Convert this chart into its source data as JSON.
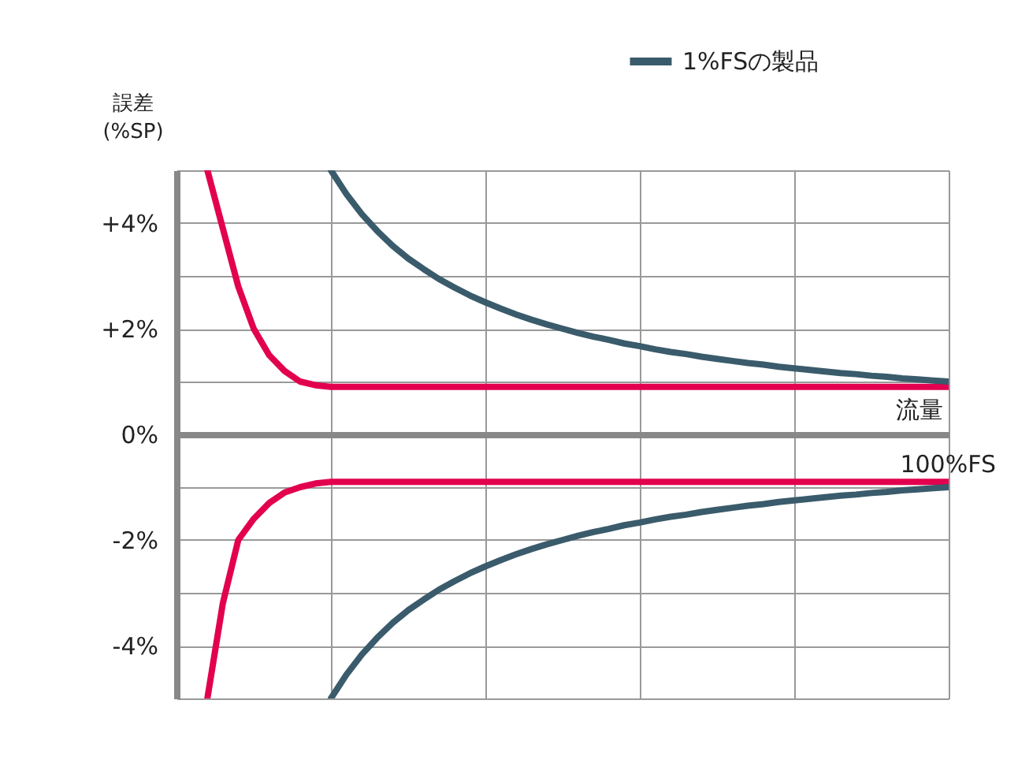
{
  "chart_data": {
    "type": "line",
    "xlabel": "流量",
    "ylabel": "誤差\n(%SP)",
    "annotations": [
      "100%FS"
    ],
    "categories": [
      null,
      null,
      null,
      null,
      null,
      null,
      null,
      null,
      null,
      null,
      null,
      null,
      null,
      null,
      null,
      null,
      null,
      null,
      null,
      null,
      null,
      null,
      null,
      null,
      null,
      null,
      null,
      null,
      null,
      null,
      null,
      null,
      null,
      null,
      null,
      null,
      null,
      null,
      null,
      null,
      null,
      null,
      null,
      null,
      null,
      null,
      null,
      null,
      null,
      null,
      null
    ],
    "ylim": [
      -5,
      5
    ],
    "yticks": [
      {
        "value": -5,
        "label": null
      },
      {
        "value": -4,
        "label": "-4%"
      },
      {
        "value": -3,
        "label": null
      },
      {
        "value": -2,
        "label": "-2%"
      },
      {
        "value": -1,
        "label": null
      },
      {
        "value": 0,
        "label": "0%"
      },
      {
        "value": 1,
        "label": null
      },
      {
        "value": 2,
        "label": "+2%"
      },
      {
        "value": 3,
        "label": null
      },
      {
        "value": 4,
        "label": "+4%"
      },
      {
        "value": 5,
        "label": null
      }
    ],
    "grid": true,
    "legend": "top right",
    "marker": "none",
    "line_style": "solid",
    "series": [
      {
        "color": "#e2004f",
        "values": [
          null,
          null,
          5,
          3.9,
          2.8,
          2,
          1.5,
          1.2,
          1,
          0.93,
          0.9,
          0.9,
          0.9,
          0.9,
          0.9,
          0.9,
          0.9,
          0.9,
          0.9,
          0.9,
          0.9,
          0.9,
          0.9,
          0.9,
          0.9,
          0.9,
          0.9,
          0.9,
          0.9,
          0.9,
          0.9,
          0.9,
          0.9,
          0.9,
          0.9,
          0.9,
          0.9,
          0.9,
          0.9,
          0.9,
          0.9,
          0.9,
          0.9,
          0.9,
          0.9,
          0.9,
          0.9,
          0.9,
          0.9,
          0.9,
          0.9
        ]
      },
      {
        "color": "#e2004f",
        "values": [
          null,
          null,
          -5,
          -3.2,
          -2,
          -1.6,
          -1.3,
          -1.1,
          -1,
          -0.93,
          -0.9,
          -0.9,
          -0.9,
          -0.9,
          -0.9,
          -0.9,
          -0.9,
          -0.9,
          -0.9,
          -0.9,
          -0.9,
          -0.9,
          -0.9,
          -0.9,
          -0.9,
          -0.9,
          -0.9,
          -0.9,
          -0.9,
          -0.9,
          -0.9,
          -0.9,
          -0.9,
          -0.9,
          -0.9,
          -0.9,
          -0.9,
          -0.9,
          -0.9,
          -0.9,
          -0.9,
          -0.9,
          -0.9,
          -0.9,
          -0.9,
          -0.9,
          -0.9,
          -0.9,
          -0.9,
          -0.9,
          -0.9
        ]
      },
      {
        "name": "1%FSの製品",
        "color": "#3a5b6b",
        "values": [
          null,
          null,
          null,
          null,
          null,
          null,
          null,
          null,
          null,
          null,
          5,
          4.55,
          4.17,
          3.85,
          3.57,
          3.33,
          3.13,
          2.94,
          2.78,
          2.63,
          2.5,
          2.38,
          2.27,
          2.17,
          2.08,
          2,
          1.92,
          1.85,
          1.79,
          1.72,
          1.67,
          1.61,
          1.56,
          1.52,
          1.47,
          1.43,
          1.39,
          1.35,
          1.32,
          1.28,
          1.25,
          1.22,
          1.19,
          1.16,
          1.14,
          1.11,
          1.09,
          1.06,
          1.04,
          1.02,
          1
        ]
      },
      {
        "color": "#3a5b6b",
        "values": [
          null,
          null,
          null,
          null,
          null,
          null,
          null,
          null,
          null,
          null,
          -5,
          -4.55,
          -4.17,
          -3.85,
          -3.57,
          -3.33,
          -3.13,
          -2.94,
          -2.78,
          -2.63,
          -2.5,
          -2.38,
          -2.27,
          -2.17,
          -2.08,
          -2,
          -1.92,
          -1.85,
          -1.79,
          -1.72,
          -1.67,
          -1.61,
          -1.56,
          -1.52,
          -1.47,
          -1.43,
          -1.39,
          -1.35,
          -1.32,
          -1.28,
          -1.25,
          -1.22,
          -1.19,
          -1.16,
          -1.14,
          -1.11,
          -1.09,
          -1.06,
          -1.04,
          -1.02,
          -1
        ]
      }
    ]
  }
}
